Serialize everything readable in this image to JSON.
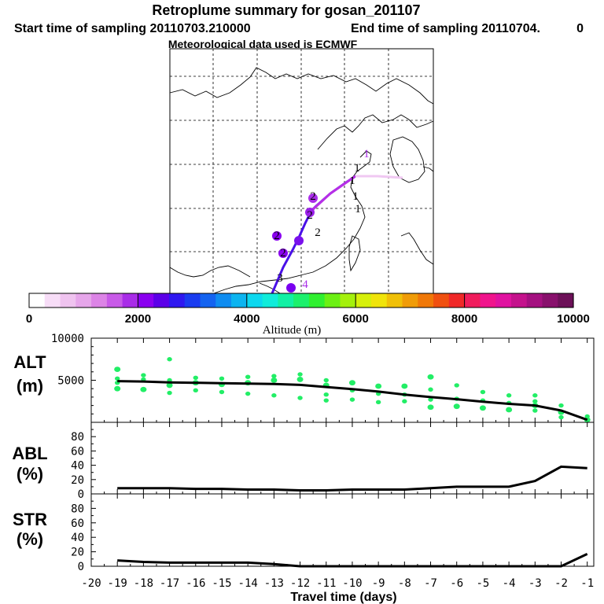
{
  "header": {
    "title": "Retroplume summary for gosan_201107",
    "start_label": "Start time of sampling 20110703.210000",
    "end_label": "End time of sampling 20110704.",
    "end_value": "0",
    "met_label": "Meteorological data used is ECMWF"
  },
  "colorbar": {
    "ticks": [
      "0",
      "2000",
      "4000",
      "6000",
      "8000",
      "10000"
    ],
    "label": "Altitude (m)",
    "colors": [
      "#ffffff",
      "#f7ddf7",
      "#efc3ef",
      "#e6a6ea",
      "#dc84e6",
      "#c85ae8",
      "#a92de8",
      "#8a00f0",
      "#5c00e8",
      "#2f18f0",
      "#1a3cf0",
      "#1463f0",
      "#0f8cf0",
      "#0cb4f0",
      "#0cd8ef",
      "#10ecda",
      "#12f0a4",
      "#1cf06c",
      "#30f030",
      "#6cf014",
      "#a4f00c",
      "#d6f00a",
      "#f0e40a",
      "#f0c008",
      "#f09c08",
      "#f07808",
      "#f05010",
      "#f02828",
      "#f01c5c",
      "#f0148c",
      "#e012a0",
      "#c4128c",
      "#a41080",
      "#88106c",
      "#6c1058"
    ]
  },
  "map": {
    "point_labels": [
      "1",
      "1",
      "1",
      "1",
      "1",
      "2",
      "2",
      "2",
      "2",
      "2",
      "3",
      "4"
    ]
  },
  "chart_data": [
    {
      "type": "scatter",
      "name": "ALT",
      "ylabel": "ALT",
      "yunit": "(m)",
      "xlim": [
        -20,
        -1
      ],
      "ylim": [
        0,
        10000
      ],
      "yticks": [
        "10000",
        "5000"
      ],
      "line": {
        "x": [
          -19,
          -18,
          -17,
          -16,
          -15,
          -14,
          -13,
          -12,
          -11,
          -10,
          -9,
          -8,
          -7,
          -6,
          -5,
          -4,
          -3,
          -2,
          -1
        ],
        "y": [
          4900,
          4850,
          4750,
          4700,
          4650,
          4600,
          4550,
          4450,
          4200,
          3950,
          3650,
          3300,
          3000,
          2750,
          2450,
          2200,
          2000,
          1400,
          300
        ]
      },
      "points": {
        "x": [
          -19,
          -19,
          -19,
          -19,
          -18,
          -18,
          -18,
          -17,
          -17,
          -17,
          -17,
          -16,
          -16,
          -16,
          -15,
          -15,
          -15,
          -14,
          -14,
          -14,
          -13,
          -13,
          -13,
          -12,
          -12,
          -12,
          -11,
          -11,
          -11,
          -11,
          -10,
          -10,
          -10,
          -9,
          -9,
          -9,
          -8,
          -8,
          -8,
          -7,
          -7,
          -7,
          -7,
          -6,
          -6,
          -6,
          -5,
          -5,
          -5,
          -4,
          -4,
          -4,
          -3,
          -3,
          -3,
          -3,
          -2,
          -2,
          -2,
          -1,
          -1
        ],
        "y": [
          6300,
          5200,
          4700,
          4000,
          5600,
          5100,
          3900,
          7500,
          5000,
          4400,
          3500,
          5300,
          4700,
          3800,
          5200,
          4500,
          3600,
          5400,
          4700,
          3400,
          5500,
          5000,
          3200,
          5700,
          5100,
          2900,
          5000,
          4400,
          3300,
          2600,
          4700,
          3800,
          2700,
          4300,
          3400,
          2400,
          4300,
          3300,
          2500,
          5400,
          3900,
          2700,
          1800,
          4400,
          2800,
          1900,
          3600,
          2600,
          1700,
          3200,
          2300,
          1500,
          3200,
          2500,
          2000,
          1400,
          2000,
          1200,
          600,
          700,
          300
        ]
      }
    },
    {
      "type": "line",
      "name": "ABL",
      "ylabel": "ABL",
      "yunit": "(%)",
      "xlim": [
        -20,
        -1
      ],
      "ylim": [
        0,
        100
      ],
      "yticks": [
        "0",
        "20",
        "40",
        "60",
        "80"
      ],
      "x": [
        -19,
        -18,
        -17,
        -16,
        -15,
        -14,
        -13,
        -12,
        -11,
        -10,
        -9,
        -8,
        -7,
        -6,
        -5,
        -4,
        -3,
        -2,
        -1
      ],
      "y": [
        8,
        8,
        8,
        7,
        7,
        6,
        6,
        5,
        5,
        6,
        6,
        6,
        8,
        10,
        10,
        10,
        18,
        38,
        36
      ]
    },
    {
      "type": "line",
      "name": "STR",
      "ylabel": "STR",
      "yunit": "(%)",
      "xlim": [
        -20,
        -1
      ],
      "ylim": [
        0,
        100
      ],
      "yticks": [
        "0",
        "20",
        "40",
        "60",
        "80"
      ],
      "xlabel": "Travel time (days)",
      "xticks": [
        "-20",
        "-19",
        "-18",
        "-17",
        "-16",
        "-15",
        "-14",
        "-13",
        "-12",
        "-11",
        "-10",
        "-9",
        "-8",
        "-7",
        "-6",
        "-5",
        "-4",
        "-3",
        "-2",
        "-1"
      ],
      "x": [
        -19,
        -18,
        -17,
        -16,
        -15,
        -14,
        -13,
        -12,
        -11,
        -10,
        -9,
        -8,
        -7,
        -6,
        -5,
        -4,
        -3,
        -2,
        -1
      ],
      "y": [
        8,
        6,
        5,
        5,
        5,
        5,
        3,
        0,
        0,
        0,
        0,
        0,
        0,
        0,
        0,
        0,
        0,
        0,
        17
      ]
    }
  ]
}
